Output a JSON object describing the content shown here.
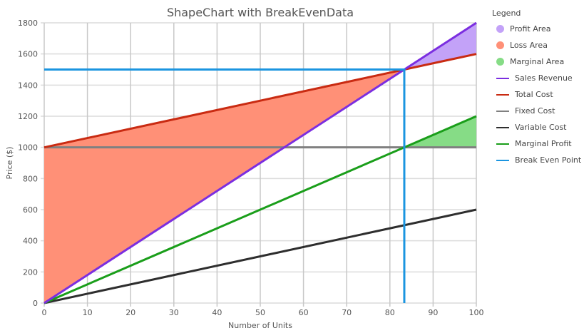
{
  "chart_data": {
    "type": "line",
    "title": "ShapeChart with BreakEvenData",
    "xlabel": "Number of Units",
    "ylabel": "Price ($)",
    "xlim": [
      0,
      100
    ],
    "ylim": [
      0,
      1800
    ],
    "xticks": [
      0,
      10,
      20,
      30,
      40,
      50,
      60,
      70,
      80,
      90,
      100
    ],
    "yticks": [
      0,
      200,
      400,
      600,
      800,
      1000,
      1200,
      1400,
      1600,
      1800
    ],
    "grid": true,
    "legend_position": "right",
    "legend_title": "Legend",
    "areas": [
      {
        "name": "Profit Area",
        "color": "#c3a2f8",
        "points": [
          [
            83.33,
            1500
          ],
          [
            100,
            1800
          ],
          [
            100,
            1600
          ]
        ]
      },
      {
        "name": "Loss Area",
        "color": "#ff9077",
        "points": [
          [
            0,
            0
          ],
          [
            0,
            1000
          ],
          [
            83.33,
            1500
          ]
        ]
      },
      {
        "name": "Marginal Area",
        "color": "#86dc86",
        "points": [
          [
            83.33,
            1000
          ],
          [
            100,
            1200
          ],
          [
            100,
            1000
          ]
        ]
      }
    ],
    "series": [
      {
        "name": "Sales Revenue",
        "color": "#7b2ee0",
        "x": [
          0,
          100
        ],
        "y": [
          0,
          1800
        ]
      },
      {
        "name": "Total Cost",
        "color": "#c92b12",
        "x": [
          0,
          100
        ],
        "y": [
          1000,
          1600
        ]
      },
      {
        "name": "Fixed Cost",
        "color": "#808080",
        "x": [
          0,
          100
        ],
        "y": [
          1000,
          1000
        ]
      },
      {
        "name": "Variable Cost",
        "color": "#2e2e2e",
        "x": [
          0,
          100
        ],
        "y": [
          0,
          600
        ]
      },
      {
        "name": "Marginal Profit",
        "color": "#1a9e1a",
        "x": [
          0,
          100
        ],
        "y": [
          0,
          1200
        ]
      },
      {
        "name": "Break Even Point",
        "color": "#1b95e0",
        "x": [
          0,
          83.33,
          83.33
        ],
        "y": [
          1500,
          1500,
          0
        ]
      }
    ]
  }
}
